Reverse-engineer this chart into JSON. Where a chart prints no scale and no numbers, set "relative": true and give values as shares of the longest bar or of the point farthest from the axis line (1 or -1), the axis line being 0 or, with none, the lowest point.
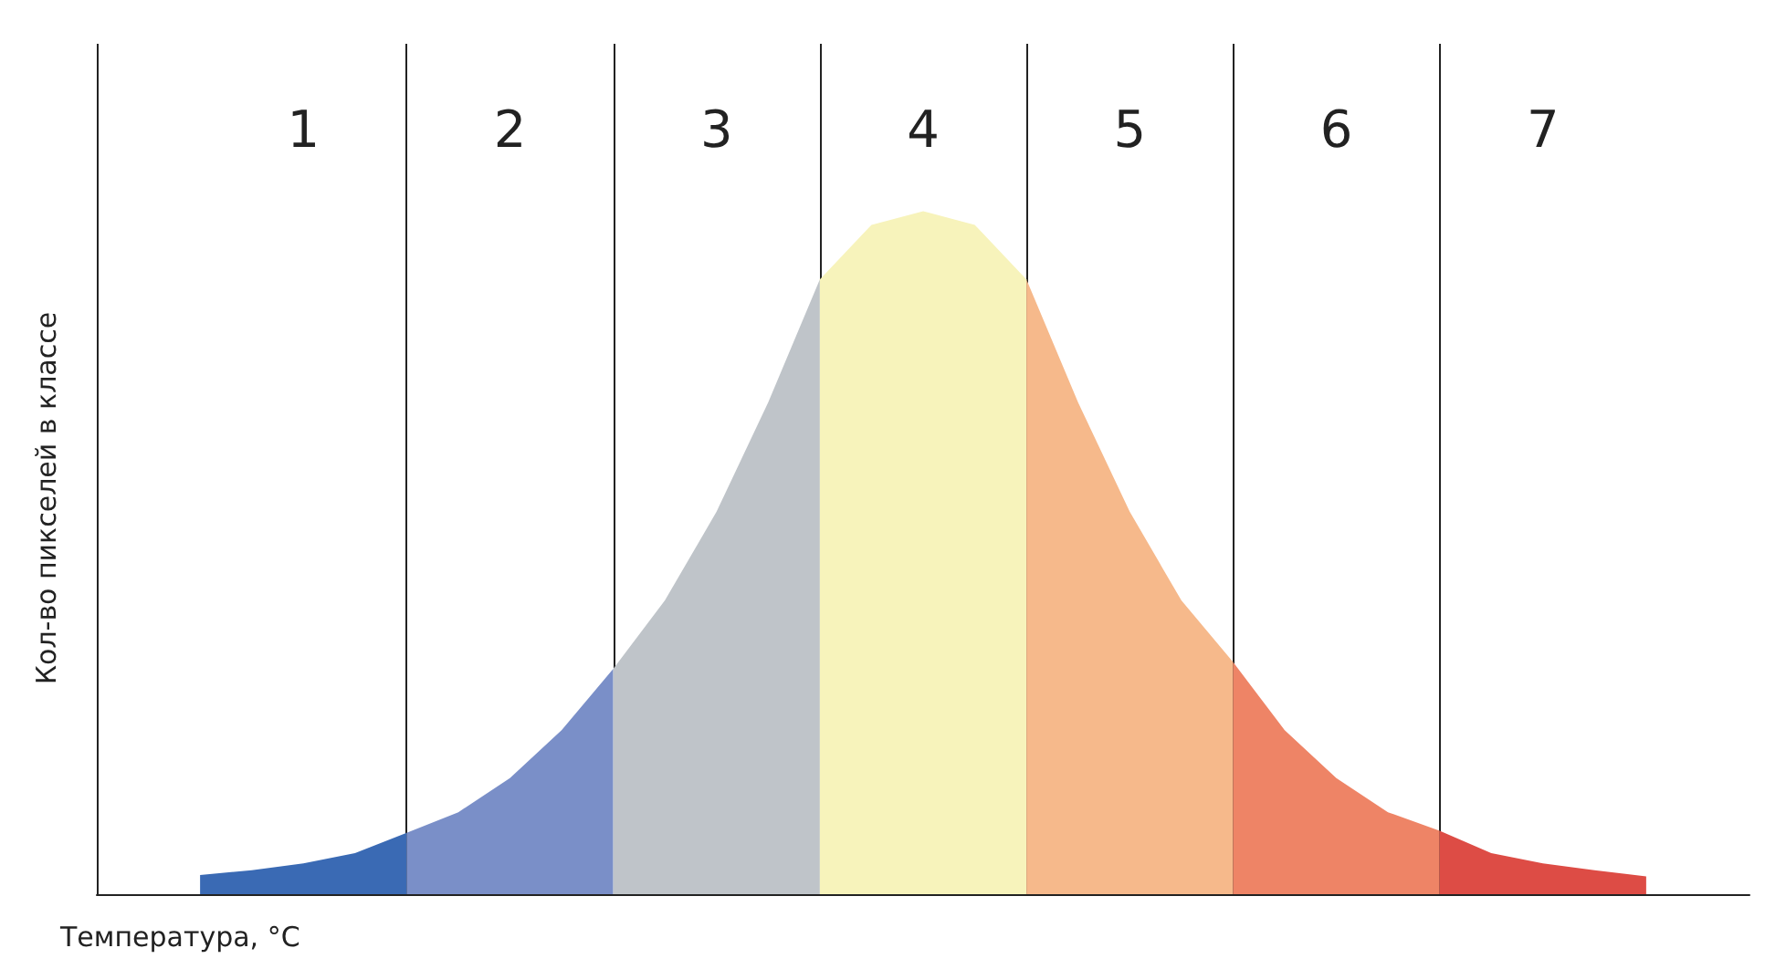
{
  "chart_data": {
    "type": "area",
    "relative": true,
    "grid": "x",
    "annotations": [
      "1",
      "2",
      "3",
      "4",
      "5",
      "6",
      "7"
    ],
    "xlabel": "Температура, °C",
    "ylabel": "Кол-во пикселей в классе",
    "categories": [
      null,
      null,
      null,
      null,
      null,
      null,
      null,
      null,
      null,
      null,
      null,
      null,
      null,
      null,
      null,
      null,
      null,
      null,
      null,
      null,
      null,
      null,
      null,
      null,
      null,
      null,
      null,
      null,
      null,
      null,
      null,
      null,
      null
    ],
    "series": [
      {
        "color": "#3a6ab4",
        "values": [
          null,
          null,
          0.028,
          0.035,
          0.045,
          0.06,
          0.09,
          null,
          null,
          null,
          null,
          null,
          null,
          null,
          null,
          null,
          null,
          null,
          null,
          null,
          null,
          null,
          null,
          null,
          null,
          null,
          null,
          null,
          null,
          null,
          null,
          null,
          null
        ]
      },
      {
        "color": "#7a8fc8",
        "values": [
          null,
          null,
          null,
          null,
          null,
          null,
          0.09,
          0.12,
          0.17,
          0.24,
          0.33,
          null,
          null,
          null,
          null,
          null,
          null,
          null,
          null,
          null,
          null,
          null,
          null,
          null,
          null,
          null,
          null,
          null,
          null,
          null,
          null,
          null,
          null
        ]
      },
      {
        "color": "#bfc4c9",
        "values": [
          null,
          null,
          null,
          null,
          null,
          null,
          null,
          null,
          null,
          null,
          0.33,
          0.43,
          0.56,
          0.72,
          0.9,
          null,
          null,
          null,
          null,
          null,
          null,
          null,
          null,
          null,
          null,
          null,
          null,
          null,
          null,
          null,
          null,
          null,
          null
        ]
      },
      {
        "color": "#f7f3bb",
        "values": [
          null,
          null,
          null,
          null,
          null,
          null,
          null,
          null,
          null,
          null,
          null,
          null,
          null,
          null,
          0.9,
          0.98,
          1,
          0.98,
          0.9,
          null,
          null,
          null,
          null,
          null,
          null,
          null,
          null,
          null,
          null,
          null,
          null,
          null,
          null
        ]
      },
      {
        "color": "#f6b98b",
        "values": [
          null,
          null,
          null,
          null,
          null,
          null,
          null,
          null,
          null,
          null,
          null,
          null,
          null,
          null,
          null,
          null,
          null,
          null,
          0.9,
          0.72,
          0.56,
          0.43,
          0.34,
          null,
          null,
          null,
          null,
          null,
          null,
          null,
          null,
          null,
          null
        ]
      },
      {
        "color": "#ee8466",
        "values": [
          null,
          null,
          null,
          null,
          null,
          null,
          null,
          null,
          null,
          null,
          null,
          null,
          null,
          null,
          null,
          null,
          null,
          null,
          null,
          null,
          null,
          null,
          0.34,
          0.24,
          0.17,
          0.12,
          0.093,
          null,
          null,
          null,
          null,
          null,
          null
        ]
      },
      {
        "color": "#dd4c45",
        "values": [
          null,
          null,
          null,
          null,
          null,
          null,
          null,
          null,
          null,
          null,
          null,
          null,
          null,
          null,
          null,
          null,
          null,
          null,
          null,
          null,
          null,
          null,
          null,
          null,
          null,
          null,
          0.093,
          0.06,
          0.045,
          0.035,
          0.026,
          null,
          null
        ]
      }
    ]
  }
}
